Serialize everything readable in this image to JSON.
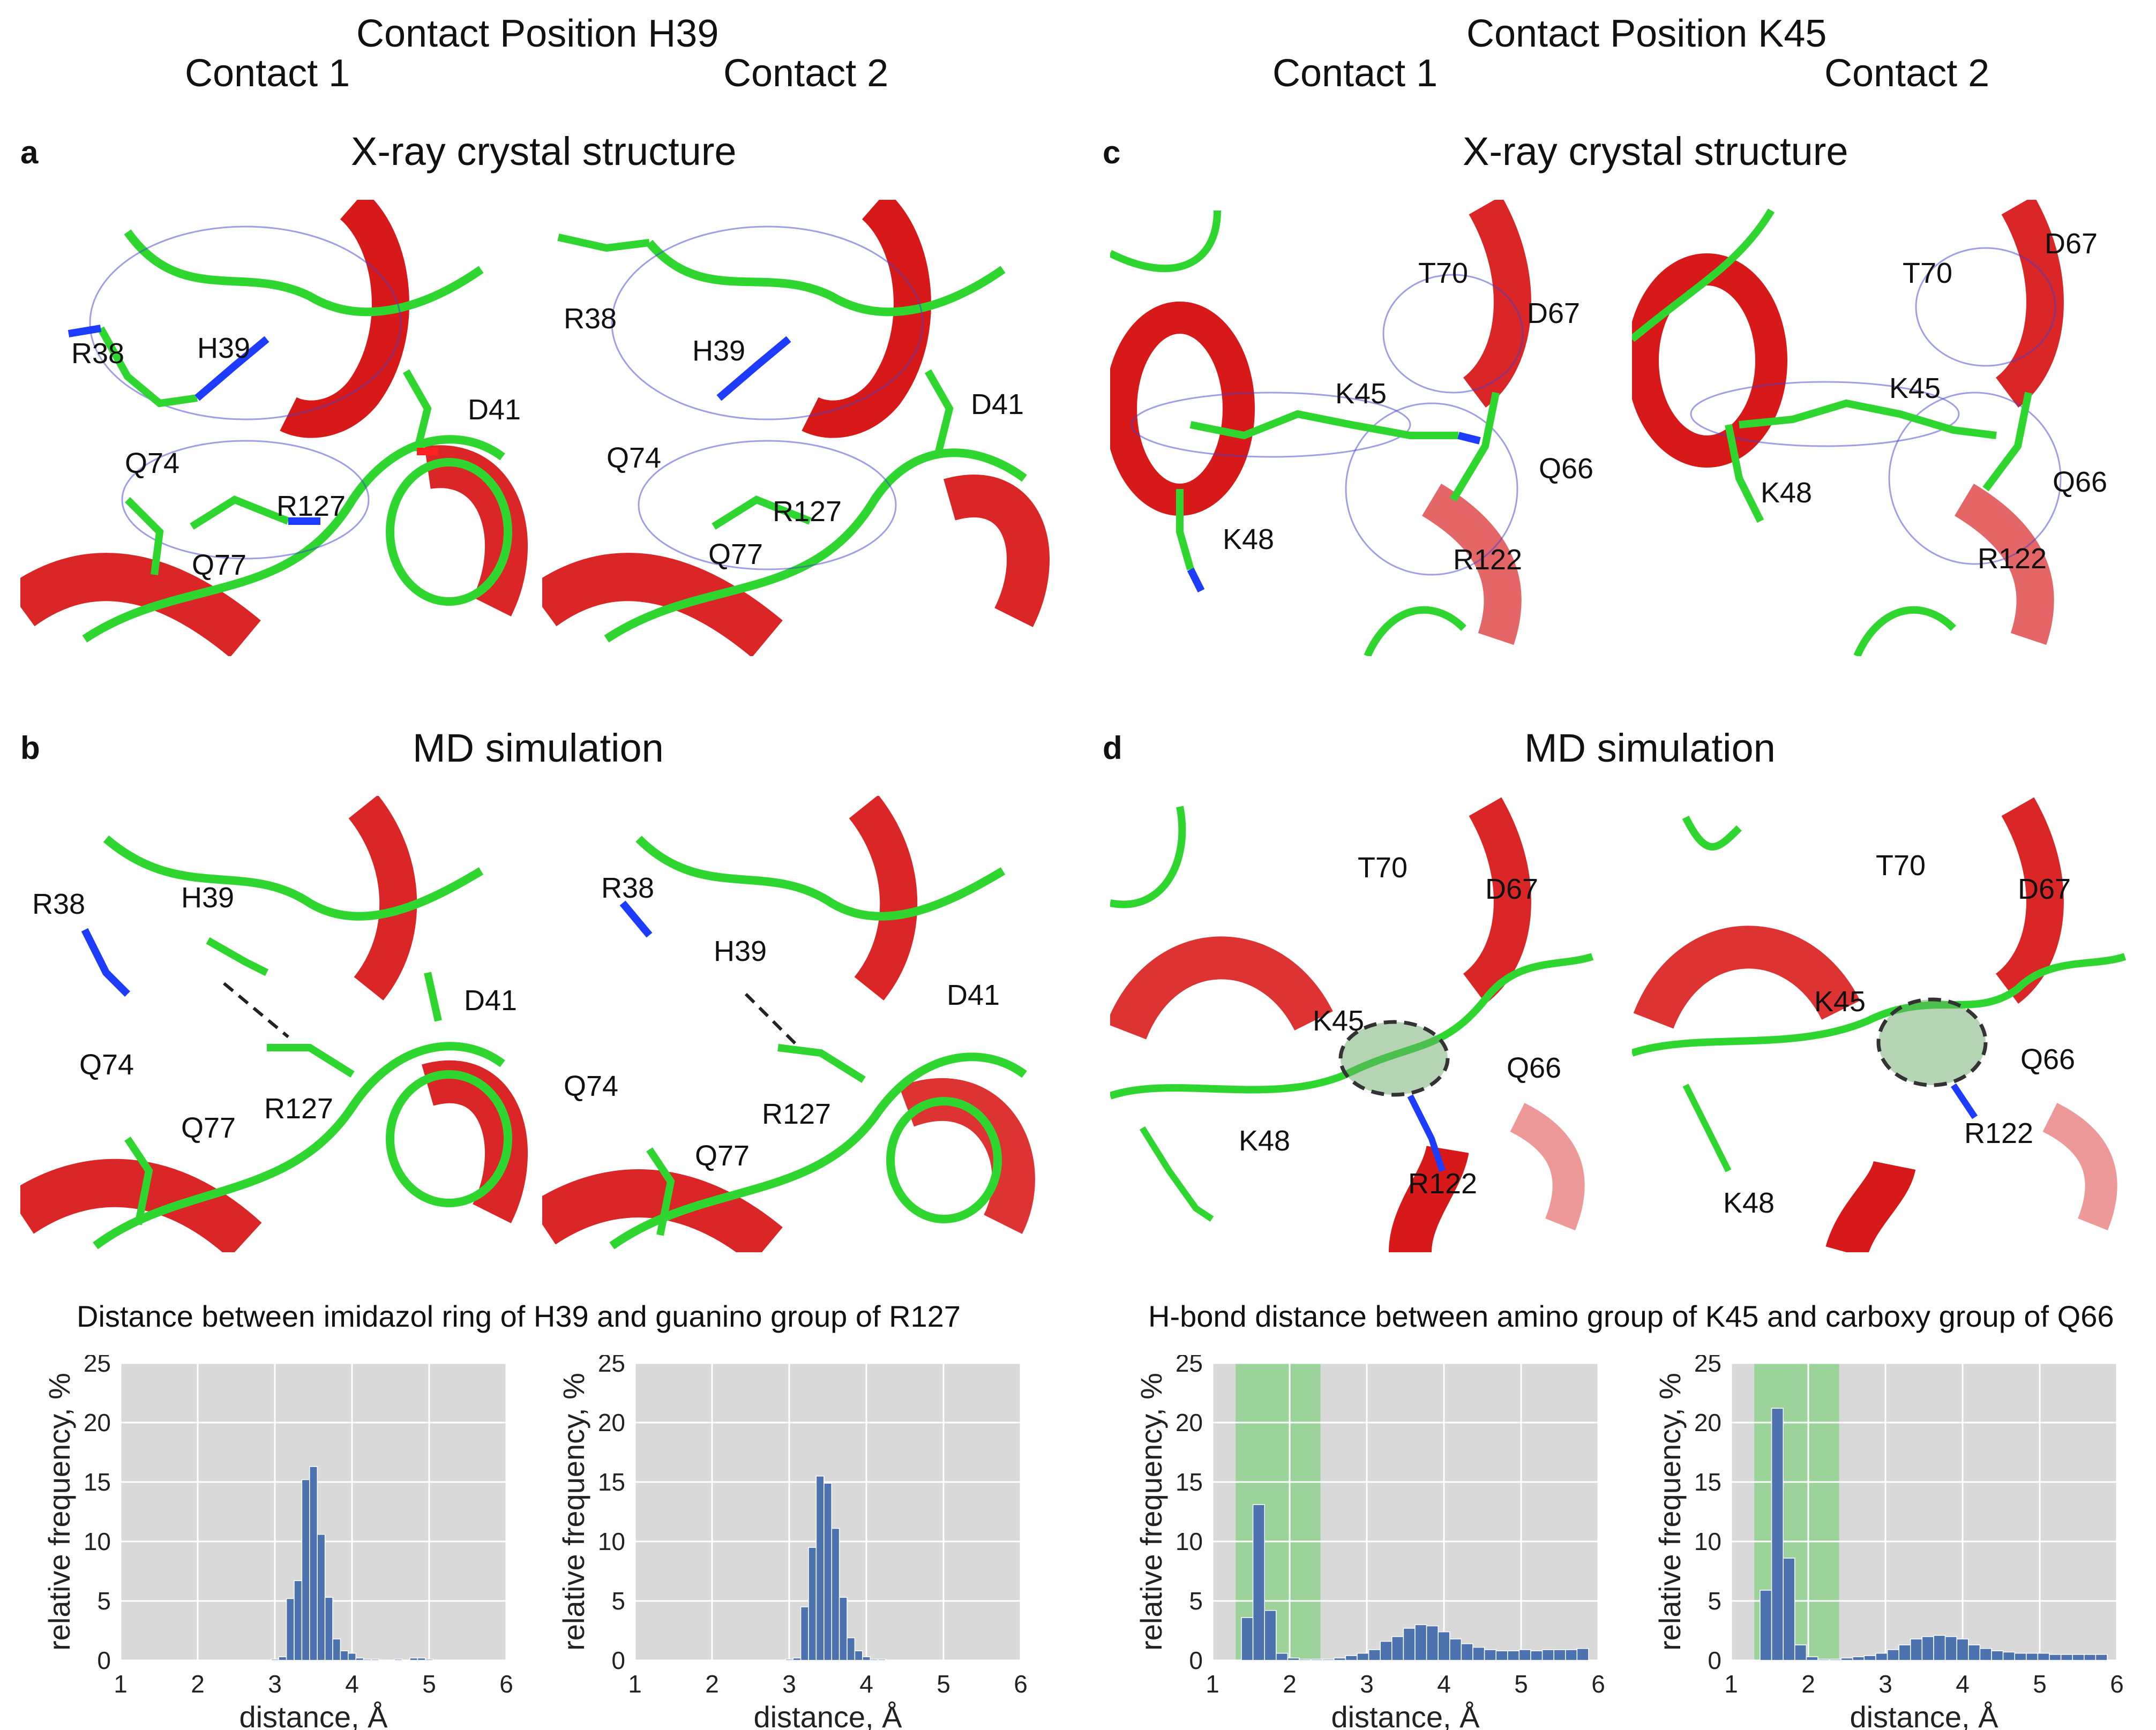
{
  "groups": [
    {
      "title": "Contact Position H39",
      "contact1": "Contact 1",
      "contact2": "Contact 2"
    },
    {
      "title": "Contact Position K45",
      "contact1": "Contact 1",
      "contact2": "Contact 2"
    }
  ],
  "panels": {
    "a": {
      "letter": "a",
      "title": "X-ray crystal structure"
    },
    "b": {
      "letter": "b",
      "title": "MD simulation"
    },
    "c": {
      "letter": "c",
      "title": "X-ray crystal structure"
    },
    "d": {
      "letter": "d",
      "title": "MD simulation"
    }
  },
  "images": {
    "a1": [
      "R38",
      "H39",
      "D41",
      "Q74",
      "R127",
      "Q77"
    ],
    "a2": [
      "R38",
      "H39",
      "D41",
      "Q74",
      "R127",
      "Q77"
    ],
    "b1": [
      "R38",
      "H39",
      "D41",
      "Q74",
      "R127",
      "Q77"
    ],
    "b2": [
      "R38",
      "H39",
      "D41",
      "Q74",
      "R127",
      "Q77"
    ],
    "c1": [
      "T70",
      "D67",
      "K45",
      "Q66",
      "K48",
      "R122"
    ],
    "c2": [
      "T70",
      "D67",
      "K45",
      "Q66",
      "K48",
      "R122"
    ],
    "d1": [
      "T70",
      "D67",
      "K45",
      "Q66",
      "K48",
      "R122"
    ],
    "d2": [
      "T70",
      "D67",
      "K45",
      "Q66",
      "R122",
      "K48"
    ]
  },
  "hist_titles": {
    "left": "Distance between imidazol ring of H39 and guanino group of R127",
    "right": "H-bond distance between amino group of K45 and carboxy group of Q66"
  },
  "colors": {
    "helix": "#d40000",
    "backbone": "#2fd62f",
    "mesh": "#4040d0",
    "bar": "#4c72b0",
    "plot_bg": "#d9d9d9",
    "highlight": "#8fd18f"
  },
  "chart_data": [
    {
      "type": "bar",
      "xlabel": "distance, Å",
      "ylabel": "relative frequency, %",
      "xlim": [
        1,
        6
      ],
      "ylim": [
        0,
        25
      ],
      "xticks": [
        "1",
        "2",
        "3",
        "4",
        "5",
        "6"
      ],
      "yticks": [
        "0",
        "5",
        "10",
        "15",
        "20",
        "25"
      ],
      "bin_width": 0.1,
      "x": [
        3.0,
        3.1,
        3.2,
        3.3,
        3.4,
        3.5,
        3.6,
        3.7,
        3.8,
        3.9,
        4.0,
        4.1,
        4.2,
        4.3,
        4.4,
        4.5,
        4.6,
        4.7,
        4.8,
        4.9,
        5.0,
        5.1,
        5.2,
        5.3,
        5.4,
        5.5
      ],
      "values": [
        0.1,
        0.3,
        5.2,
        6.7,
        15.2,
        16.3,
        10.6,
        5.3,
        1.8,
        0.8,
        0.6,
        0.2,
        0.1,
        0.1,
        0.0,
        0.0,
        0.1,
        0.0,
        0.2,
        0.2,
        0.1,
        0.0,
        0.0,
        0.0,
        0.0,
        0.0
      ]
    },
    {
      "type": "bar",
      "xlabel": "distance, Å",
      "ylabel": "relative frequency, %",
      "xlim": [
        1,
        6
      ],
      "ylim": [
        0,
        25
      ],
      "xticks": [
        "1",
        "2",
        "3",
        "4",
        "5",
        "6"
      ],
      "yticks": [
        "0",
        "5",
        "10",
        "15",
        "20",
        "25"
      ],
      "bin_width": 0.1,
      "x": [
        3.0,
        3.1,
        3.2,
        3.3,
        3.4,
        3.5,
        3.6,
        3.7,
        3.8,
        3.9,
        4.0,
        4.1,
        4.2,
        4.3,
        4.4,
        4.5
      ],
      "values": [
        0.1,
        0.2,
        4.5,
        9.5,
        15.5,
        14.9,
        11.1,
        5.3,
        1.9,
        0.8,
        0.3,
        0.1,
        0.1,
        0.0,
        0.0,
        0.0
      ]
    },
    {
      "type": "bar",
      "xlabel": "distance, Å",
      "ylabel": "relative frequency, %",
      "xlim": [
        1,
        6
      ],
      "ylim": [
        0,
        25
      ],
      "xticks": [
        "1",
        "2",
        "3",
        "4",
        "5",
        "6"
      ],
      "yticks": [
        "0",
        "5",
        "10",
        "15",
        "20",
        "25"
      ],
      "bin_width": 0.15,
      "highlight_range": [
        1.3,
        2.4
      ],
      "x": [
        1.45,
        1.6,
        1.75,
        1.9,
        2.05,
        2.2,
        2.35,
        2.5,
        2.65,
        2.8,
        2.95,
        3.1,
        3.25,
        3.4,
        3.55,
        3.7,
        3.85,
        4.0,
        4.15,
        4.3,
        4.45,
        4.6,
        4.75,
        4.9,
        5.05,
        5.2,
        5.35,
        5.5,
        5.65,
        5.8
      ],
      "values": [
        3.6,
        13.1,
        4.2,
        0.6,
        0.2,
        0.1,
        0.1,
        0.1,
        0.2,
        0.4,
        0.6,
        0.9,
        1.6,
        2.0,
        2.7,
        3.0,
        2.9,
        2.4,
        1.8,
        1.4,
        1.1,
        0.9,
        0.8,
        0.8,
        0.9,
        0.8,
        0.9,
        0.9,
        0.9,
        1.0
      ]
    },
    {
      "type": "bar",
      "xlabel": "distance, Å",
      "ylabel": "relative frequency, %",
      "xlim": [
        1,
        6
      ],
      "ylim": [
        0,
        25
      ],
      "xticks": [
        "1",
        "2",
        "3",
        "4",
        "5",
        "6"
      ],
      "yticks": [
        "0",
        "5",
        "10",
        "15",
        "20",
        "25"
      ],
      "bin_width": 0.15,
      "highlight_range": [
        1.3,
        2.4
      ],
      "x": [
        1.45,
        1.6,
        1.75,
        1.9,
        2.05,
        2.2,
        2.35,
        2.5,
        2.65,
        2.8,
        2.95,
        3.1,
        3.25,
        3.4,
        3.55,
        3.7,
        3.85,
        4.0,
        4.15,
        4.3,
        4.45,
        4.6,
        4.75,
        4.9,
        5.05,
        5.2,
        5.35,
        5.5,
        5.65,
        5.8
      ],
      "values": [
        5.9,
        21.2,
        8.6,
        1.3,
        0.3,
        0.1,
        0.1,
        0.2,
        0.3,
        0.4,
        0.6,
        0.9,
        1.3,
        1.8,
        2.0,
        2.1,
        2.0,
        1.8,
        1.3,
        1.0,
        0.8,
        0.7,
        0.6,
        0.6,
        0.6,
        0.5,
        0.5,
        0.5,
        0.5,
        0.5
      ]
    }
  ]
}
